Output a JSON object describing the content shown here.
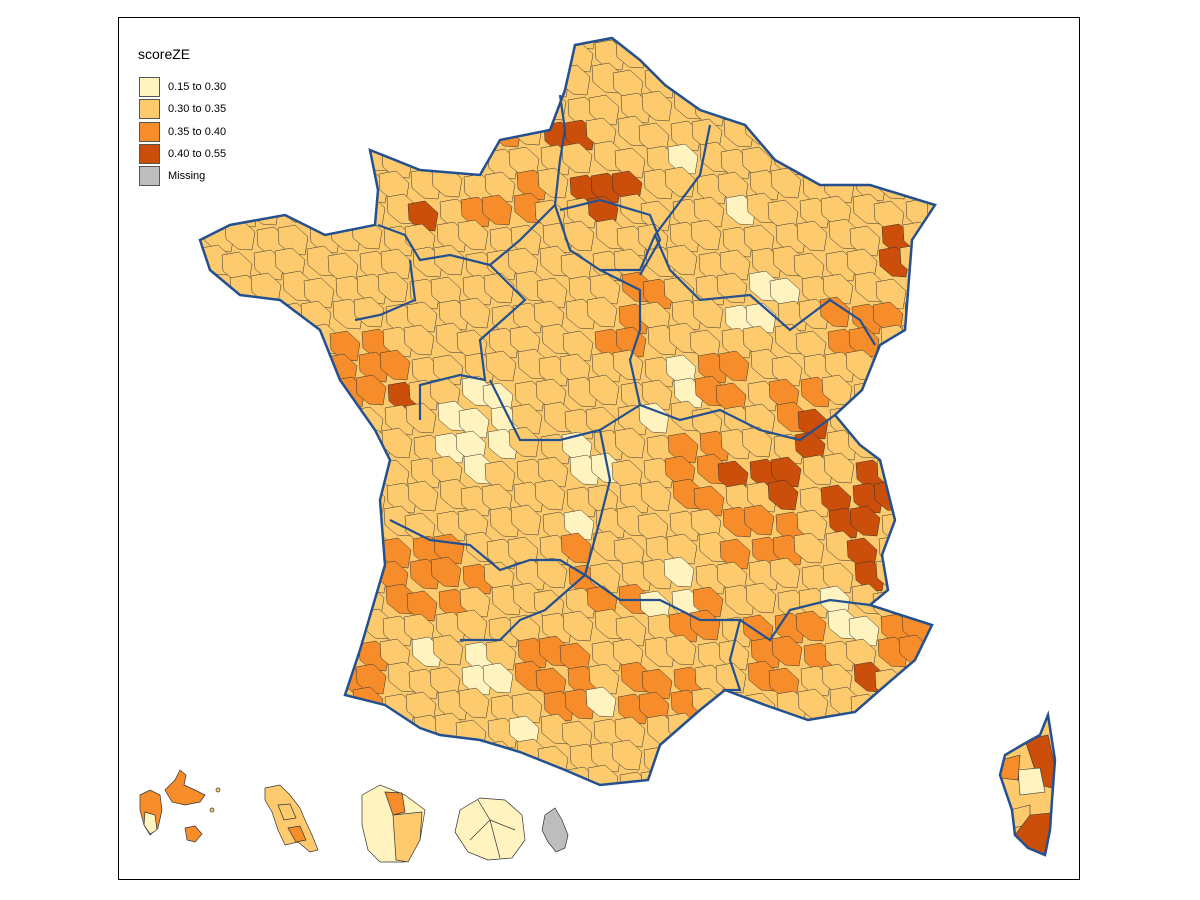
{
  "legend": {
    "title": "scoreZE",
    "items": [
      {
        "label": "0.15 to 0.30",
        "color": "#FFF3C0"
      },
      {
        "label": "0.30 to 0.35",
        "color": "#FDCB6E"
      },
      {
        "label": "0.35 to 0.40",
        "color": "#F68D2A"
      },
      {
        "label": "0.40 to 0.55",
        "color": "#CB4F0A"
      },
      {
        "label": "Missing",
        "color": "#BDBDBD"
      }
    ]
  },
  "map": {
    "border_color": "#24508F",
    "zone_line_color": "#333333"
  }
}
